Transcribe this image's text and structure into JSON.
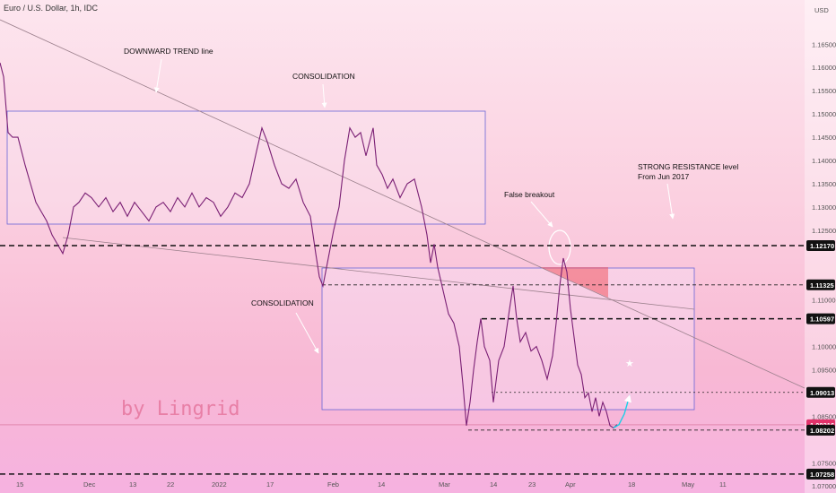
{
  "chart_data": {
    "type": "line",
    "title": "Euro / U.S. Dollar, 1h, IDC",
    "currency": "USD",
    "watermark": "by Lingrid",
    "xlabels": [
      "15",
      "Dec",
      "13",
      "22",
      "2022",
      "17",
      "Feb",
      "14",
      "Mar",
      "14",
      "23",
      "Apr",
      "18",
      "May",
      "11"
    ],
    "yticks": [
      1.165,
      1.16,
      1.155,
      1.15,
      1.145,
      1.14,
      1.135,
      1.13,
      1.125,
      1.11,
      1.1,
      1.095,
      1.085,
      1.075,
      1.07
    ],
    "ylim": [
      1.0685,
      1.1745
    ],
    "levels": [
      {
        "value": 1.1217,
        "label": "1.12170",
        "style": "dashed-bold",
        "badge": "#111111"
      },
      {
        "value": 1.11325,
        "label": "1.11325",
        "style": "dashed",
        "badge": "#111111"
      },
      {
        "value": 1.10597,
        "label": "1.10597",
        "style": "dashed-bold",
        "badge": "#111111"
      },
      {
        "value": 1.09013,
        "label": "1.09013",
        "style": "dotted",
        "badge": "#111111"
      },
      {
        "value": 1.08316,
        "label": "1.08316",
        "style": "current",
        "badge": "#e2336b"
      },
      {
        "value": 1.08202,
        "label": "1.08202",
        "style": "dashed",
        "badge": "#111111"
      },
      {
        "value": 1.07258,
        "label": "1.07258",
        "style": "dashed-bold",
        "badge": "#111111"
      }
    ],
    "annotations": [
      {
        "id": "downtrend",
        "text": "DOWNWARD TREND line"
      },
      {
        "id": "consolidation-top",
        "text": "CONSOLIDATION"
      },
      {
        "id": "consolidation-bottom",
        "text": "CONSOLIDATION"
      },
      {
        "id": "false-breakout",
        "text": "False breakout"
      },
      {
        "id": "resistance-1",
        "text": "STRONG RESISTANCE level"
      },
      {
        "id": "resistance-2",
        "text": "From Jun 2017"
      }
    ],
    "price_series": [
      [
        0,
        1.161
      ],
      [
        4,
        1.158
      ],
      [
        9,
        1.146
      ],
      [
        14,
        1.145
      ],
      [
        20,
        1.145
      ],
      [
        28,
        1.139
      ],
      [
        34,
        1.135
      ],
      [
        40,
        1.131
      ],
      [
        46,
        1.129
      ],
      [
        52,
        1.127
      ],
      [
        58,
        1.124
      ],
      [
        64,
        1.122
      ],
      [
        70,
        1.12
      ],
      [
        76,
        1.124
      ],
      [
        82,
        1.13
      ],
      [
        88,
        1.131
      ],
      [
        95,
        1.133
      ],
      [
        102,
        1.132
      ],
      [
        110,
        1.13
      ],
      [
        118,
        1.132
      ],
      [
        126,
        1.129
      ],
      [
        134,
        1.131
      ],
      [
        142,
        1.128
      ],
      [
        150,
        1.131
      ],
      [
        158,
        1.129
      ],
      [
        166,
        1.127
      ],
      [
        174,
        1.13
      ],
      [
        182,
        1.131
      ],
      [
        190,
        1.129
      ],
      [
        198,
        1.132
      ],
      [
        206,
        1.13
      ],
      [
        214,
        1.133
      ],
      [
        222,
        1.13
      ],
      [
        230,
        1.132
      ],
      [
        238,
        1.131
      ],
      [
        246,
        1.128
      ],
      [
        254,
        1.13
      ],
      [
        262,
        1.133
      ],
      [
        270,
        1.132
      ],
      [
        278,
        1.135
      ],
      [
        286,
        1.142
      ],
      [
        292,
        1.147
      ],
      [
        298,
        1.144
      ],
      [
        306,
        1.139
      ],
      [
        314,
        1.135
      ],
      [
        322,
        1.134
      ],
      [
        330,
        1.136
      ],
      [
        338,
        1.131
      ],
      [
        346,
        1.128
      ],
      [
        352,
        1.12
      ],
      [
        356,
        1.115
      ],
      [
        360,
        1.113
      ],
      [
        366,
        1.119
      ],
      [
        372,
        1.125
      ],
      [
        378,
        1.13
      ],
      [
        384,
        1.14
      ],
      [
        390,
        1.147
      ],
      [
        396,
        1.145
      ],
      [
        402,
        1.146
      ],
      [
        408,
        1.141
      ],
      [
        416,
        1.147
      ],
      [
        420,
        1.139
      ],
      [
        426,
        1.137
      ],
      [
        432,
        1.134
      ],
      [
        438,
        1.136
      ],
      [
        446,
        1.132
      ],
      [
        454,
        1.135
      ],
      [
        462,
        1.136
      ],
      [
        470,
        1.13
      ],
      [
        476,
        1.124
      ],
      [
        480,
        1.118
      ],
      [
        484,
        1.122
      ],
      [
        488,
        1.117
      ],
      [
        494,
        1.112
      ],
      [
        500,
        1.107
      ],
      [
        506,
        1.105
      ],
      [
        512,
        1.1
      ],
      [
        516,
        1.092
      ],
      [
        520,
        1.083
      ],
      [
        524,
        1.088
      ],
      [
        528,
        1.095
      ],
      [
        532,
        1.101
      ],
      [
        536,
        1.106
      ],
      [
        540,
        1.1
      ],
      [
        546,
        1.097
      ],
      [
        550,
        1.088
      ],
      [
        556,
        1.097
      ],
      [
        562,
        1.1
      ],
      [
        568,
        1.108
      ],
      [
        572,
        1.113
      ],
      [
        576,
        1.106
      ],
      [
        580,
        1.101
      ],
      [
        586,
        1.103
      ],
      [
        592,
        1.099
      ],
      [
        598,
        1.1
      ],
      [
        604,
        1.097
      ],
      [
        610,
        1.093
      ],
      [
        616,
        1.098
      ],
      [
        620,
        1.105
      ],
      [
        624,
        1.113
      ],
      [
        628,
        1.119
      ],
      [
        632,
        1.116
      ],
      [
        636,
        1.108
      ],
      [
        640,
        1.102
      ],
      [
        644,
        1.096
      ],
      [
        648,
        1.094
      ],
      [
        652,
        1.089
      ],
      [
        656,
        1.09
      ],
      [
        660,
        1.086
      ],
      [
        664,
        1.089
      ],
      [
        668,
        1.085
      ],
      [
        672,
        1.088
      ],
      [
        676,
        1.086
      ],
      [
        680,
        1.083
      ],
      [
        684,
        1.0825
      ],
      [
        688,
        1.0832
      ]
    ],
    "forecast": [
      [
        684,
        1.0825
      ],
      [
        690,
        1.0832
      ],
      [
        696,
        1.0855
      ],
      [
        702,
        1.0895
      ]
    ]
  }
}
